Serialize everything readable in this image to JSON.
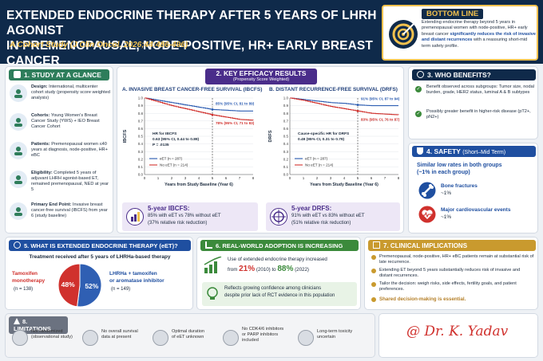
{
  "header": {
    "title_line1": "EXTENDED ENDOCRINE THERAPY AFTER 5 YEARS OF LHRH AGONIST",
    "title_line2": "IN PREMENOPAUSAL, NODE-POSITIVE, HR+ EARLY BREAST CANCER",
    "subtitle": "A Cohort Study (J Clin Oncol. 2026;44:486-496)"
  },
  "bottom_line": {
    "title": "BOTTOM LINE",
    "text_pre": "Extending endocrine therapy beyond 5 years in premenopausal women with node-positive, HR+ early breast cancer ",
    "text_bold": "significantly reduces the risk of invasive and distant recurrences",
    "text_post": " with a reassuring short-mid term safety profile."
  },
  "study": {
    "heading": "1. STUDY AT A GLANCE",
    "items": [
      {
        "label": "Design:",
        "text": "International, multicenter cohort study (propensity score weighted analysis)",
        "icon": "people-icon"
      },
      {
        "label": "Cohorts:",
        "text": "Young Women's Breast Cancer Study (YWS) + IEO Breast Cancer Cohort",
        "icon": "calendar-icon"
      },
      {
        "label": "Patients:",
        "text": "Premenopausal women ≤40 years at diagnosis, node-positive, HR+ eBC",
        "icon": "person-icon"
      },
      {
        "label": "Eligibility:",
        "text": "Completed 5 years of adjuvant LHRH agonist-based ET, remained premenopausal, NED at year 5",
        "icon": "shield-check-icon"
      },
      {
        "label": "Primary End Point:",
        "text": "Invasive breast cancer-free survival (IBCFS) from year 6 (study baseline)",
        "icon": "target-icon"
      }
    ]
  },
  "efficacy": {
    "heading": "2. KEY EFFICACY RESULTS",
    "subheading": "(Propensity Score Weighted)",
    "ibcfs": {
      "title": "A. INVASIVE BREAST CANCER-FREE SURVIVAL (IBCFS)",
      "ylabel": "IBCFS",
      "xlabel": "Years from Study Baseline (Year 6)",
      "hr_title": "HR for IBCFS",
      "hr_value": "0.63 (95% CI, 0.44 to 0.89)",
      "p_value": "P = .0135",
      "eet_label": "85% (95% CI, 81 to 89)",
      "noet_label": "78% (95% CI, 71 to 83)",
      "legend_eet": "eET (n = 287)",
      "legend_noet": "No eET (n = 214)",
      "result_title": "5-year IBCFS:",
      "result_line1": "85% with eET vs 78% without eET",
      "result_line2": "(37% relative risk reduction)"
    },
    "drfs": {
      "title": "B. DISTANT RECURRENCE-FREE SURVIVAL (DRFS)",
      "ylabel": "DRFS",
      "xlabel": "Years from Study Baseline (Year 6)",
      "hr_title": "Cause-specific HR for DRFS",
      "hr_value": "0.49 (95% CI, 0.31 to 0.79)",
      "eet_label": "91% (95% CI, 87 to 94)",
      "noet_label": "83% (95% CI, 76 to 87)",
      "legend_eet": "eET (n = 287)",
      "legend_noet": "No eET (n = 214)",
      "result_title": "5-year DRFS:",
      "result_line1": "91% with eET vs 83% without eET",
      "result_line2": "(51% relative risk reduction)"
    },
    "colors": {
      "eet": "#2f5fb3",
      "noet": "#d0312d"
    }
  },
  "chart_data": [
    {
      "type": "line",
      "title": "A. INVASIVE BREAST CANCER-FREE SURVIVAL (IBCFS)",
      "xlabel": "Years from Study Baseline (Year 6)",
      "ylabel": "IBCFS",
      "x": [
        0,
        1,
        2,
        3,
        4,
        5,
        6,
        7,
        8
      ],
      "xlim": [
        0,
        8
      ],
      "ylim": [
        0,
        1.0
      ],
      "yticks": [
        0,
        0.1,
        0.2,
        0.3,
        0.4,
        0.5,
        0.6,
        0.7,
        0.8,
        0.9,
        1.0
      ],
      "series": [
        {
          "name": "eET (n = 287)",
          "values": [
            1.0,
            0.97,
            0.94,
            0.91,
            0.88,
            0.85,
            0.84,
            0.83,
            0.83
          ]
        },
        {
          "name": "No eET (n = 214)",
          "values": [
            1.0,
            0.95,
            0.9,
            0.86,
            0.82,
            0.78,
            0.75,
            0.72,
            0.71
          ]
        }
      ]
    },
    {
      "type": "line",
      "title": "B. DISTANT RECURRENCE-FREE SURVIVAL (DRFS)",
      "xlabel": "Years from Study Baseline (Year 6)",
      "ylabel": "DRFS",
      "x": [
        0,
        1,
        2,
        3,
        4,
        5,
        6,
        7,
        8
      ],
      "xlim": [
        0,
        8
      ],
      "ylim": [
        0,
        1.0
      ],
      "yticks": [
        0,
        0.1,
        0.2,
        0.3,
        0.4,
        0.5,
        0.6,
        0.7,
        0.8,
        0.9,
        1.0
      ],
      "series": [
        {
          "name": "eET (n = 287)",
          "values": [
            1.0,
            0.98,
            0.96,
            0.94,
            0.93,
            0.91,
            0.9,
            0.9,
            0.9
          ]
        },
        {
          "name": "No eET (n = 214)",
          "values": [
            1.0,
            0.97,
            0.93,
            0.89,
            0.86,
            0.83,
            0.8,
            0.79,
            0.78
          ]
        }
      ]
    },
    {
      "type": "pie",
      "title": "Treatment received after 5 years of LHRHa-based therapy",
      "categories": [
        "Tamoxifen monotherapy",
        "LHRHa + tamoxifen or aromatase inhibitor"
      ],
      "values": [
        48,
        52
      ],
      "colors": [
        "#d0312d",
        "#2f5fb3"
      ]
    }
  ],
  "benefits": {
    "heading": "3. WHO BENEFITS?",
    "item1": "Benefit observed across subgroups: Tumor size, nodal burden, grade, HER2 status, luminal A & B subtypes",
    "item2": "Possibly greater benefit in higher-risk disease (pT2+, pN2+)"
  },
  "safety": {
    "heading": "4. SAFETY",
    "heading_suffix": "(Short–Mid Term)",
    "lead_line1": "Similar low rates in both groups",
    "lead_line2": "(~1% in each group)",
    "bone_label": "Bone fractures",
    "bone_value": "~1%",
    "cardio_label": "Major cardiovascular events",
    "cardio_value": "~1%"
  },
  "eet_panel": {
    "heading": "5. WHAT IS EXTENDED ENDOCRINE THERAPY (eET)?",
    "subheading": "Treatment received after 5 years of LHRHa-based therapy",
    "tam_label1": "Tamoxifen",
    "tam_label2": "monotherapy",
    "tam_n": "(n = 138)",
    "tam_pct": "48%",
    "combo_label1": "LHRHa + tamoxifen",
    "combo_label2": "or aromatase inhibitor",
    "combo_n": "(n = 149)",
    "combo_pct": "52%"
  },
  "adoption": {
    "heading": "6. REAL-WORLD ADOPTION IS INCREASING",
    "text1": "Use of extended endocrine therapy increased",
    "from_word": "from",
    "from_value": "21%",
    "from_year": "(2010) to",
    "to_value": "88%",
    "to_year": "(2022)",
    "text2_line1": "Reflects growing confidence among clinicians",
    "text2_line2": "despite prior lack of RCT evidence in this population"
  },
  "implications": {
    "heading": "7. CLINICAL IMPLICATIONS",
    "items": [
      "Premenopausal, node-positive, HR+ eBC patients remain at substantial risk of late recurrence.",
      "Extending ET beyond 5 years substantially reduces risk of invasive and distant recurrences.",
      "Tailor the decision: weigh risks, side effects, fertility goals, and patient preferences."
    ],
    "last": "Shared decision-making is essential."
  },
  "limitations": {
    "heading": "8. LIMITATIONS",
    "items": [
      {
        "line1": "Not randomized",
        "line2": "(observational study)"
      },
      {
        "line1": "No overall survival",
        "line2": "data at present"
      },
      {
        "line1": "Optimal duration",
        "line2": "of eET unknown"
      },
      {
        "line1": "No CDK4/6 inhibitors",
        "line2": "or PARP inhibitors",
        "line3": "included"
      },
      {
        "line1": "Long-term toxicity",
        "line2": "uncertain"
      }
    ]
  },
  "signature": "@ Dr. K. Yadav"
}
